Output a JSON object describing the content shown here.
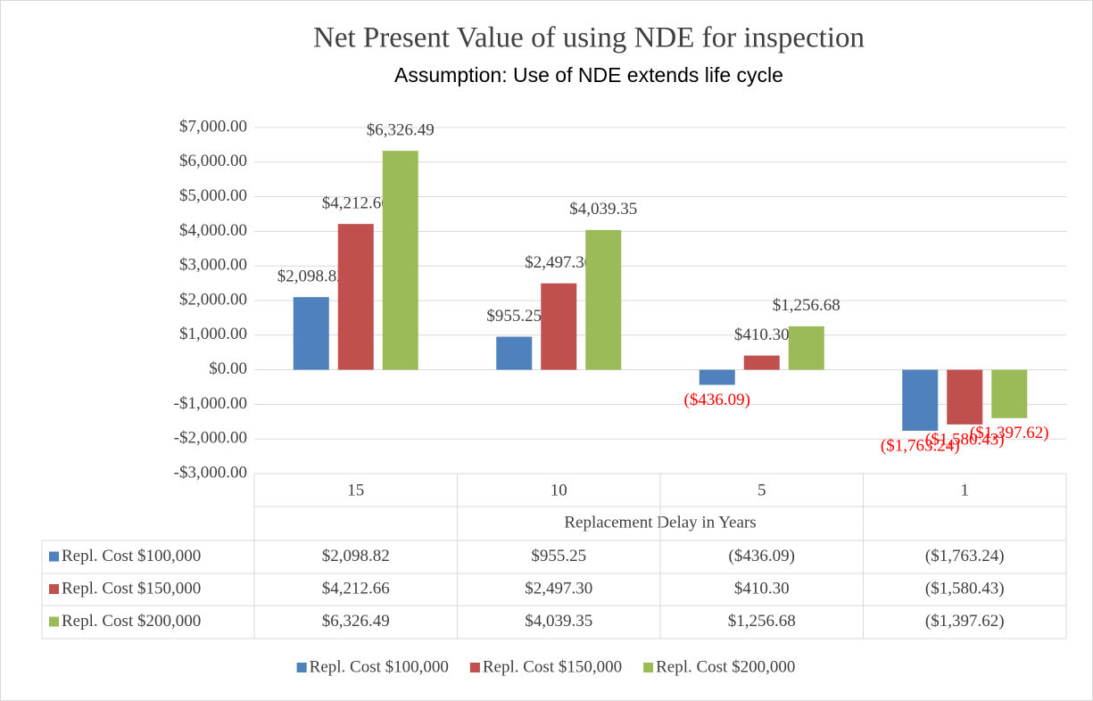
{
  "chart_data": {
    "type": "bar",
    "title": "Net Present Value of using NDE for inspection",
    "subtitle": "Assumption: Use of NDE extends life cycle",
    "x_label": "Replacement Delay in Years",
    "categories": [
      "15",
      "10",
      "5",
      "1"
    ],
    "series": [
      {
        "name": "Repl. Cost $100,000",
        "color": "#4f81bd",
        "values": [
          2098.82,
          955.25,
          -436.09,
          -1763.24
        ],
        "value_labels": [
          "$2,098.82",
          "$955.25",
          "($436.09)",
          "($1,763.24)"
        ]
      },
      {
        "name": "Repl. Cost $150,000",
        "color": "#c0504d",
        "values": [
          4212.66,
          2497.3,
          410.3,
          -1580.43
        ],
        "value_labels": [
          "$4,212.66",
          "$2,497.30",
          "$410.30",
          "($1,580.43)"
        ]
      },
      {
        "name": "Repl. Cost $200,000",
        "color": "#9bbb59",
        "values": [
          6326.49,
          4039.35,
          1256.68,
          -1397.62
        ],
        "value_labels": [
          "$6,326.49",
          "$4,039.35",
          "$1,256.68",
          "($1,397.62)"
        ]
      }
    ],
    "ylim": [
      -3000,
      7000
    ],
    "yticks": [
      {
        "value": -3000,
        "label": "-$3,000.00"
      },
      {
        "value": -2000,
        "label": "-$2,000.00"
      },
      {
        "value": -1000,
        "label": "-$1,000.00"
      },
      {
        "value": 0,
        "label": "$0.00"
      },
      {
        "value": 1000,
        "label": "$1,000.00"
      },
      {
        "value": 2000,
        "label": "$2,000.00"
      },
      {
        "value": 3000,
        "label": "$3,000.00"
      },
      {
        "value": 4000,
        "label": "$4,000.00"
      },
      {
        "value": 5000,
        "label": "$5,000.00"
      },
      {
        "value": 6000,
        "label": "$6,000.00"
      },
      {
        "value": 7000,
        "label": "$7,000.00"
      }
    ],
    "grid": true,
    "data_table": true,
    "legend": "bottom",
    "negative_label_color": "#ff0000"
  }
}
